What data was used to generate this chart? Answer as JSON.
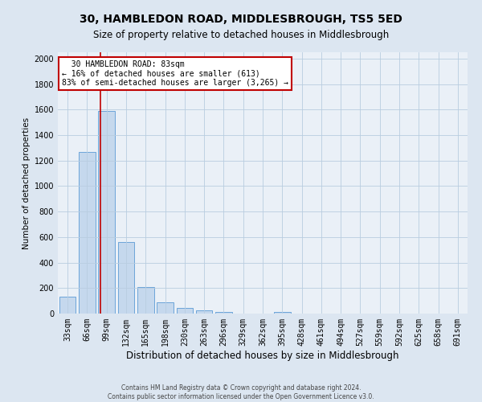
{
  "title": "30, HAMBLEDON ROAD, MIDDLESBROUGH, TS5 5ED",
  "subtitle": "Size of property relative to detached houses in Middlesbrough",
  "xlabel": "Distribution of detached houses by size in Middlesbrough",
  "ylabel": "Number of detached properties",
  "footer_line1": "Contains HM Land Registry data © Crown copyright and database right 2024.",
  "footer_line2": "Contains public sector information licensed under the Open Government Licence v3.0.",
  "bin_labels": [
    "33sqm",
    "66sqm",
    "99sqm",
    "132sqm",
    "165sqm",
    "198sqm",
    "230sqm",
    "263sqm",
    "296sqm",
    "329sqm",
    "362sqm",
    "395sqm",
    "428sqm",
    "461sqm",
    "494sqm",
    "527sqm",
    "559sqm",
    "592sqm",
    "625sqm",
    "658sqm",
    "691sqm"
  ],
  "bar_values": [
    130,
    1270,
    1590,
    560,
    210,
    90,
    45,
    25,
    10,
    0,
    0,
    10,
    0,
    0,
    0,
    0,
    0,
    0,
    0,
    0,
    0
  ],
  "bar_color": "#c5d8ed",
  "bar_edgecolor": "#5b9bd5",
  "vline_color": "#c00000",
  "vline_x_index": 1.68,
  "annotation_line1": "  30 HAMBLEDON ROAD: 83sqm",
  "annotation_line2": "← 16% of detached houses are smaller (613)",
  "annotation_line3": "83% of semi-detached houses are larger (3,265) →",
  "annotation_box_edgecolor": "#c00000",
  "annotation_box_facecolor": "white",
  "ylim": [
    0,
    2050
  ],
  "yticks": [
    0,
    200,
    400,
    600,
    800,
    1000,
    1200,
    1400,
    1600,
    1800,
    2000
  ],
  "grid_color": "#b8cde0",
  "bg_color": "#dce6f1",
  "plot_bg_color": "#eaf0f7",
  "title_fontsize": 10,
  "subtitle_fontsize": 8.5,
  "xlabel_fontsize": 8.5,
  "ylabel_fontsize": 7.5,
  "tick_fontsize": 7
}
